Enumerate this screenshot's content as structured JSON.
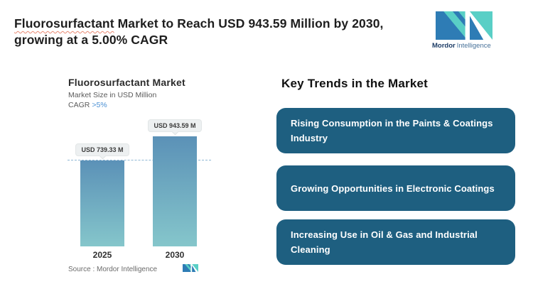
{
  "header": {
    "title": {
      "highlight": "Fluorosurfactant",
      "rest_line1": " Market to Reach USD 943.59 Million by 2030,",
      "line2": "growing at a 5.00% CAGR"
    },
    "brand": {
      "name_bold": "Mordor",
      "name_light": "Intelligence"
    }
  },
  "chart": {
    "title": "Fluorosurfactant Market",
    "subtitle": "Market Size in USD Million",
    "cagr_label": "CAGR",
    "cagr_value": ">5%",
    "source": "Source :  Mordor Intelligence"
  },
  "chart_data": {
    "type": "bar",
    "title": "Fluorosurfactant Market",
    "subtitle": "Market Size in USD Million",
    "cagr": ">5%",
    "categories": [
      "2025",
      "2030"
    ],
    "values": [
      739.33,
      943.59
    ],
    "bar_labels": [
      "USD 739.33 M",
      "USD 943.59 M"
    ],
    "ylim": [
      0,
      943.59
    ],
    "reference_line_value": 739.33,
    "reference_line_color": "#8fb7d5",
    "grid": false,
    "legend": false,
    "bar_gradient_top": "#5b91b7",
    "bar_gradient_bottom": "#85c6cb"
  },
  "trends": {
    "heading": "Key Trends in the Market",
    "card_color": "#1e5f80",
    "items": [
      {
        "label": "Rising Consumption in the Paints & Coatings Industry"
      },
      {
        "label": "Growing Opportunities in Electronic Coatings"
      },
      {
        "label": "Increasing Use in Oil & Gas and Industrial Cleaning"
      }
    ]
  },
  "colors": {
    "logo_teal": "#59cfc6",
    "logo_blue": "#2e7cb5",
    "underline_red": "#e98b74",
    "card_teal": "#1e5f80"
  }
}
